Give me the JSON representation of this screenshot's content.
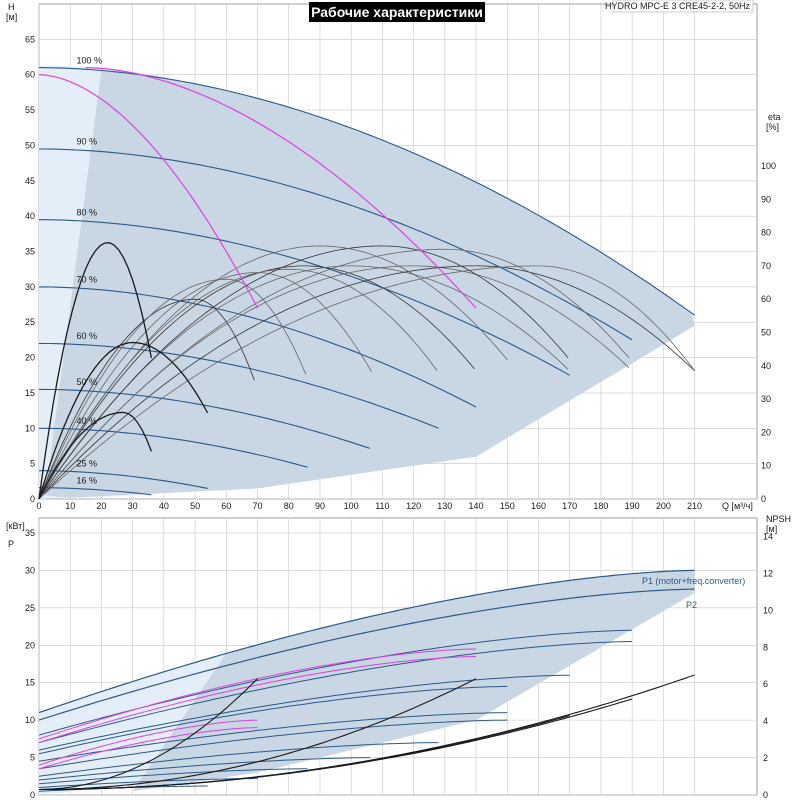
{
  "title": "Рабочие характеристики",
  "model_label": "HYDRO MPC-E 3 CRE45-2-2, 50Hz",
  "colors": {
    "envelope": "#c9d6e3",
    "envelope_light": "#e4eef8",
    "curve_blue": "#2a5a8a",
    "curve_dark": "#1a1a1a",
    "curve_magenta": "#e040e0",
    "grid": "#c8c8c8",
    "title_bg": "#000000"
  },
  "chart_data": [
    {
      "type": "line",
      "name": "head",
      "x_axis": {
        "label": "Q",
        "unit": "[м³/ч]",
        "ticks": [
          0,
          10,
          20,
          30,
          40,
          50,
          60,
          70,
          80,
          90,
          100,
          110,
          120,
          130,
          140,
          150,
          160,
          170,
          180,
          190,
          200,
          210
        ],
        "range": [
          0,
          230
        ]
      },
      "y_axis": {
        "label": "H",
        "unit": "[м]",
        "ticks": [
          0,
          5,
          10,
          15,
          20,
          25,
          30,
          35,
          40,
          45,
          50,
          55,
          60,
          65
        ],
        "range": [
          0,
          70
        ]
      },
      "y2_axis": {
        "label": "eta",
        "unit": "[%]",
        "ticks": [
          0,
          10,
          20,
          30,
          40,
          50,
          60,
          70,
          80,
          90,
          100
        ],
        "range": [
          0,
          100
        ]
      },
      "grid": true,
      "speed_labels": [
        "100 %",
        "90 %",
        "80 %",
        "70 %",
        "60 %",
        "50 %",
        "40 %",
        "25 %",
        "16 %"
      ],
      "speed_labels_values": [
        100,
        90,
        80,
        70,
        60,
        50,
        40,
        25,
        16
      ],
      "head_shutoff": [
        61,
        49.5,
        39.5,
        30,
        22,
        15.5,
        10,
        4,
        1.6
      ],
      "head_curves": [
        {
          "speed": 100,
          "shutoff": 61,
          "qmax": 210,
          "hend": 26
        },
        {
          "speed": 90,
          "shutoff": 49.5,
          "qmax": 190,
          "hend": 22.5
        },
        {
          "speed": 80,
          "shutoff": 39.5,
          "qmax": 170,
          "hend": 17.5
        },
        {
          "speed": 70,
          "shutoff": 30,
          "qmax": 140,
          "hend": 13
        },
        {
          "speed": 60,
          "shutoff": 22,
          "qmax": 128,
          "hend": 10
        },
        {
          "speed": 50,
          "shutoff": 15.5,
          "qmax": 107,
          "hend": 7
        },
        {
          "speed": 40,
          "shutoff": 10,
          "qmax": 86,
          "hend": 4.5
        },
        {
          "speed": 25,
          "shutoff": 4,
          "qmax": 54,
          "hend": 1.5
        },
        {
          "speed": 16,
          "shutoff": 1.6,
          "qmax": 36,
          "hend": 0.6
        }
      ],
      "single_pump_eta": [
        {
          "peak_q": 22,
          "peak": 77,
          "qmax": 36
        },
        {
          "peak_q": 30,
          "peak": 47,
          "qmax": 54
        },
        {
          "peak_q": 27,
          "peak": 26,
          "qmax": 36
        }
      ],
      "eta_multi": [
        {
          "peak_q": 85,
          "peak": 70,
          "qmax": 140
        },
        {
          "peak_q": 100,
          "peak": 70,
          "qmax": 170
        },
        {
          "peak_q": 120,
          "peak": 70,
          "qmax": 190
        },
        {
          "peak_q": 140,
          "peak": 70,
          "qmax": 210
        },
        {
          "peak_q": 70,
          "peak": 68,
          "qmax": 107
        },
        {
          "peak_q": 80,
          "peak": 69,
          "qmax": 128
        },
        {
          "peak_q": 50,
          "peak": 60,
          "qmax": 70
        },
        {
          "peak_q": 60,
          "peak": 66,
          "qmax": 86
        },
        {
          "peak_q": 160,
          "peak": 70,
          "qmax": 210
        },
        {
          "peak_q": 110,
          "peak": 76,
          "qmax": 170
        },
        {
          "peak_q": 130,
          "peak": 75,
          "qmax": 190
        },
        {
          "peak_q": 90,
          "peak": 76,
          "qmax": 150
        }
      ],
      "magenta_curves": [
        {
          "q_start": 0,
          "h_start": 60,
          "q_end": 70,
          "h_end": 27
        },
        {
          "q_start": 15,
          "h_start": 61,
          "q_end": 140,
          "h_end": 27
        }
      ]
    },
    {
      "type": "line",
      "name": "power",
      "x_axis": {
        "label": "Q",
        "unit": "[м³/ч]",
        "range": [
          0,
          230
        ]
      },
      "y_axis": {
        "label": "P",
        "unit": "[кВт]",
        "ticks": [
          0,
          5,
          10,
          15,
          20,
          25,
          30,
          35
        ],
        "range": [
          0,
          37
        ]
      },
      "y2_axis": {
        "label": "NPSH",
        "unit": "[м]",
        "ticks": [
          0,
          2,
          4,
          6,
          8,
          10,
          12,
          14
        ],
        "range": [
          0,
          15
        ]
      },
      "grid": true,
      "series_labels": [
        "P1 (motor+freq.converter)",
        "P2"
      ],
      "p1_curve": {
        "start": 11,
        "end": 30,
        "qmax": 210
      },
      "p2_curve": {
        "start": 10,
        "end": 27.5,
        "qmax": 210
      },
      "npsh_curve": {
        "start": 0.5,
        "end": 6.5,
        "qmax": 210
      },
      "power_curves": [
        {
          "start": 8,
          "end": 22,
          "qmax": 190
        },
        {
          "start": 7,
          "end": 20.5,
          "qmax": 190
        },
        {
          "start": 6,
          "end": 16,
          "qmax": 170
        },
        {
          "start": 5.5,
          "end": 14.5,
          "qmax": 150
        },
        {
          "start": 4.5,
          "end": 11,
          "qmax": 150
        },
        {
          "start": 3.5,
          "end": 10,
          "qmax": 150
        },
        {
          "start": 2.5,
          "end": 7,
          "qmax": 128
        },
        {
          "start": 2,
          "end": 5,
          "qmax": 107
        },
        {
          "start": 1.5,
          "end": 3.5,
          "qmax": 86
        },
        {
          "start": 1,
          "end": 2.2,
          "qmax": 70
        },
        {
          "start": 0.5,
          "end": 1.2,
          "qmax": 54
        }
      ],
      "magenta_power": [
        {
          "start": 7.5,
          "end": 19.5,
          "qmax": 140
        },
        {
          "start": 7,
          "end": 18.5,
          "qmax": 140
        },
        {
          "start": 4,
          "end": 10,
          "qmax": 70
        },
        {
          "start": 3.5,
          "end": 9,
          "qmax": 70
        }
      ]
    }
  ]
}
